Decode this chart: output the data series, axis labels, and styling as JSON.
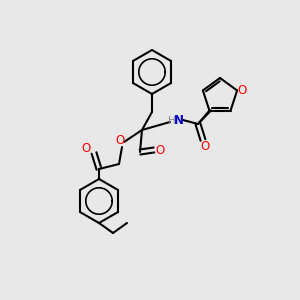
{
  "bg_color": "#e8e8e8",
  "bond_color": "#000000",
  "bond_width": 1.5,
  "atom_colors": {
    "O": "#ff0000",
    "N": "#0000cc",
    "H": "#888888",
    "C": "#000000"
  },
  "font_size": 7.5
}
